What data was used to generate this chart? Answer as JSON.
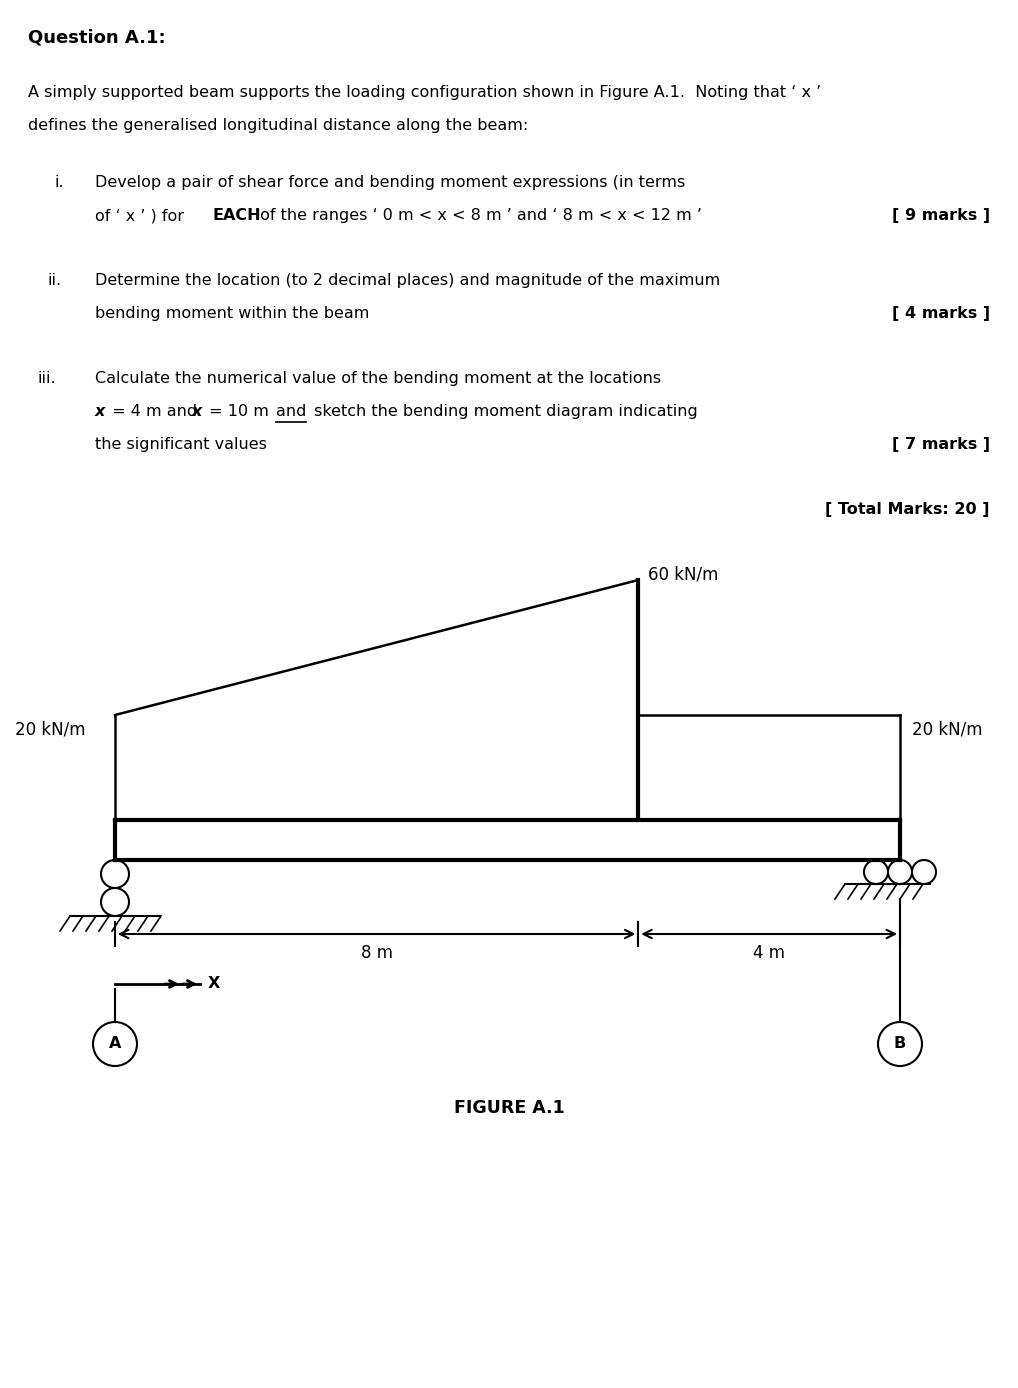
{
  "title": "Question A.1:",
  "intro_line1": "A simply supported beam supports the loading configuration shown in Figure A.1.  Noting that ‘ x ’",
  "intro_line2": "defines the generalised longitudinal distance along the beam:",
  "i_label": "i.",
  "i_line1": "Develop a pair of shear force and bending moment expressions (in terms",
  "i_line2a": "of ‘ x ’ ) for ",
  "i_line2b": "EACH",
  "i_line2c": " of the ranges ‘ 0 m < x < 8 m ’ and ‘ 8 m < x < 12 m ’",
  "i_marks": "[ 9 marks ]",
  "ii_label": "ii.",
  "ii_line1": "Determine the location (to 2 decimal places) and magnitude of the maximum",
  "ii_line2": "bending moment within the beam",
  "ii_marks": "[ 4 marks ]",
  "iii_label": "iii.",
  "iii_line1": "Calculate the numerical value of the bending moment at the locations",
  "iii_line2a": "x",
  "iii_line2b": " = 4 m and ",
  "iii_line2c": "x",
  "iii_line2d": " = 10 m ",
  "iii_line2e": "and",
  "iii_line2f": " sketch the bending moment diagram indicating",
  "iii_line3": "the significant values",
  "iii_marks": "[ 7 marks ]",
  "total_marks": "[ Total Marks: 20 ]",
  "load_left_label": "20 kN/m",
  "load_top_label": "60 kN/m",
  "load_right_label": "20 kN/m",
  "dim_left_label": "8 m",
  "dim_right_label": "4 m",
  "x_label": "X",
  "label_A": "A",
  "label_B": "B",
  "figure_label": "FIGURE A.1",
  "bg_color": "#ffffff",
  "text_color": "#000000",
  "fs_title": 13,
  "fs_body": 11.5,
  "fs_marks": 11.5,
  "fs_fig": 11,
  "lw_beam": 3.0,
  "lw_load": 1.8,
  "lw_support": 1.5,
  "lw_dim": 1.5
}
